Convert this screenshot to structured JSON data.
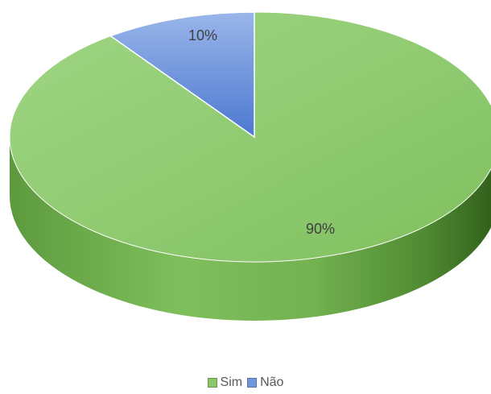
{
  "chart_data": {
    "type": "pie",
    "style": "3d",
    "categories": [
      "Sim",
      "Não"
    ],
    "values": [
      90,
      10
    ],
    "data_labels": [
      "90%",
      "10%"
    ],
    "colors": {
      "Sim": "#8cc769",
      "Não": "#6f97dc"
    },
    "title": "",
    "legend_position": "bottom"
  }
}
